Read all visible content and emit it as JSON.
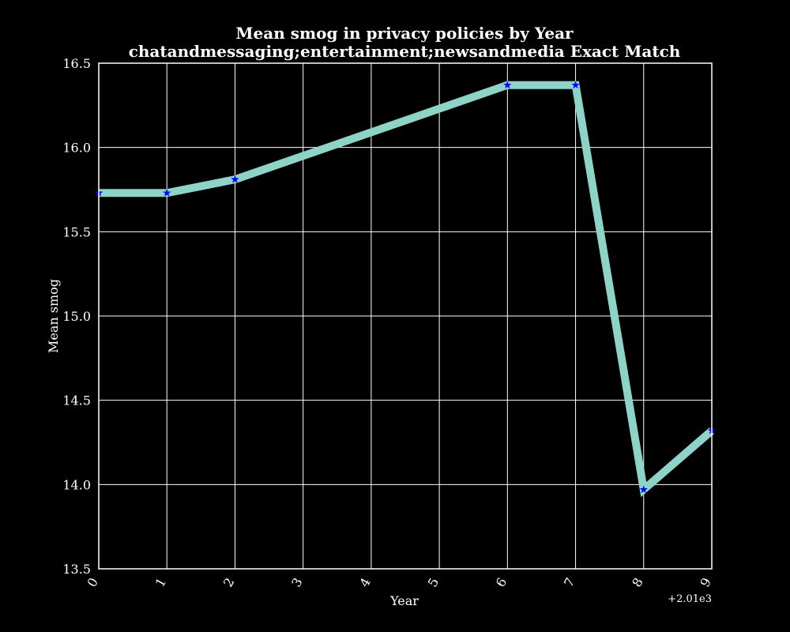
{
  "chart_data": {
    "type": "line",
    "title": "Mean smog in privacy policies by Year",
    "subtitle": "chatandmessaging;entertainment;newsandmedia Exact Match",
    "xlabel": "Year",
    "ylabel": "Mean smog",
    "x_offset_label": "+2.01e3",
    "x_offset": 2010,
    "xlim": [
      0,
      9
    ],
    "ylim": [
      13.5,
      16.5
    ],
    "x_ticks": [
      "0",
      "1",
      "2",
      "3",
      "4",
      "5",
      "6",
      "7",
      "8",
      "9"
    ],
    "y_ticks": [
      "13.5",
      "14.0",
      "14.5",
      "15.0",
      "15.5",
      "16.0",
      "16.5"
    ],
    "grid": true,
    "background": "#000000",
    "series": [
      {
        "line_color": "#8dd3c7",
        "marker": "star",
        "marker_color": "#0000ff",
        "points": [
          {
            "x": 2010,
            "y": 15.73
          },
          {
            "x": 2011,
            "y": 15.73
          },
          {
            "x": 2012,
            "y": 15.81
          },
          {
            "x": 2016,
            "y": 16.37
          },
          {
            "x": 2017,
            "y": 16.37
          },
          {
            "x": 2018,
            "y": 13.97
          },
          {
            "x": 2019,
            "y": 14.32
          }
        ]
      }
    ]
  }
}
